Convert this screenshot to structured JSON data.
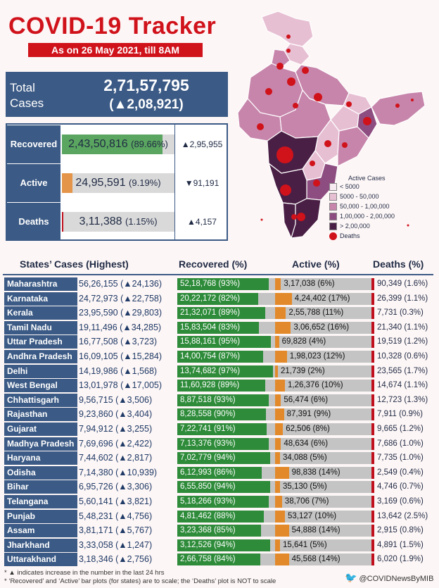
{
  "title": "COVID-19 Tracker",
  "subtitle": "As on 26 May 2021, till 8AM",
  "total": {
    "label": "Total Cases",
    "value": "2,71,57,795",
    "delta": "(▲2,08,921)"
  },
  "summary": [
    {
      "label": "Recovered",
      "value": "2,43,50,816",
      "pct_text": "(89.66%)",
      "pct": 89.66,
      "delta": "▲2,95,955",
      "color": "#5aa55f"
    },
    {
      "label": "Active",
      "value": "24,95,591",
      "pct_text": "(9.19%)",
      "pct": 9.19,
      "delta": "▼91,191",
      "color": "#e4954a"
    },
    {
      "label": "Deaths",
      "value": "3,11,388",
      "pct_text": "(1.15%)",
      "pct": 1.15,
      "delta": "▲4,157",
      "color": "#c0101e"
    }
  ],
  "map_legend": {
    "title": "Active Cases",
    "items": [
      {
        "label": "< 5000",
        "color": "#f7eaf1"
      },
      {
        "label": "5000 - 50,000",
        "color": "#e7bfd3"
      },
      {
        "label": "50,000 - 1,00,000",
        "color": "#c785ab"
      },
      {
        "label": "1,00,000 - 2,00,000",
        "color": "#8e4d80"
      },
      {
        "label": "> 2,00,000",
        "color": "#4a1f45"
      }
    ],
    "deaths_label": "Deaths"
  },
  "table_headers": {
    "states": "States’ Cases (Highest)",
    "recovered": "Recovered (%)",
    "active": "Active (%)",
    "deaths": "Deaths (%)"
  },
  "chart_data": {
    "type": "table",
    "columns": [
      "State",
      "Cases",
      "Recovered",
      "Active",
      "Deaths"
    ],
    "rows": [
      {
        "state": "Maharashtra",
        "cases": "56,26,155 (▲24,136)",
        "recovered": "52,18,768 (93%)",
        "rec_pct": 93,
        "active": "3,17,038 (6%)",
        "act_pct": 6,
        "deaths": "90,349 (1.6%)"
      },
      {
        "state": "Karnataka",
        "cases": "24,72,973 (▲22,758)",
        "recovered": "20,22,172 (82%)",
        "rec_pct": 82,
        "active": "4,24,402 (17%)",
        "act_pct": 17,
        "deaths": "26,399 (1.1%)"
      },
      {
        "state": "Kerala",
        "cases": "23,95,590 (▲29,803)",
        "recovered": "21,32,071 (89%)",
        "rec_pct": 89,
        "active": "2,55,788 (11%)",
        "act_pct": 11,
        "deaths": "7,731 (0.3%)"
      },
      {
        "state": "Tamil Nadu",
        "cases": "19,11,496 (▲34,285)",
        "recovered": "15,83,504 (83%)",
        "rec_pct": 83,
        "active": "3,06,652 (16%)",
        "act_pct": 16,
        "deaths": "21,340 (1.1%)"
      },
      {
        "state": "Uttar Pradesh",
        "cases": "16,77,508 (▲3,723)",
        "recovered": "15,88,161 (95%)",
        "rec_pct": 95,
        "active": "69,828 (4%)",
        "act_pct": 4,
        "deaths": "19,519 (1.2%)"
      },
      {
        "state": "Andhra Pradesh",
        "cases": "16,09,105 (▲15,284)",
        "recovered": "14,00,754 (87%)",
        "rec_pct": 87,
        "active": "1,98,023 (12%)",
        "act_pct": 12,
        "deaths": "10,328 (0.6%)"
      },
      {
        "state": "Delhi",
        "cases": "14,19,986 (▲1,568)",
        "recovered": "13,74,682 (97%)",
        "rec_pct": 97,
        "active": "21,739 (2%)",
        "act_pct": 2,
        "deaths": "23,565 (1.7%)"
      },
      {
        "state": "West Bengal",
        "cases": "13,01,978 (▲17,005)",
        "recovered": "11,60,928 (89%)",
        "rec_pct": 89,
        "active": "1,26,376 (10%)",
        "act_pct": 10,
        "deaths": "14,674 (1.1%)"
      },
      {
        "state": "Chhattisgarh",
        "cases": "9,56,715 (▲3,506)",
        "recovered": "8,87,518 (93%)",
        "rec_pct": 93,
        "active": "56,474 (6%)",
        "act_pct": 6,
        "deaths": "12,723 (1.3%)"
      },
      {
        "state": "Rajasthan",
        "cases": "9,23,860 (▲3,404)",
        "recovered": "8,28,558 (90%)",
        "rec_pct": 90,
        "active": "87,391 (9%)",
        "act_pct": 9,
        "deaths": "7,911 (0.9%)"
      },
      {
        "state": "Gujarat",
        "cases": "7,94,912 (▲3,255)",
        "recovered": "7,22,741 (91%)",
        "rec_pct": 91,
        "active": "62,506 (8%)",
        "act_pct": 8,
        "deaths": "9,665 (1.2%)"
      },
      {
        "state": "Madhya Pradesh",
        "cases": "7,69,696 (▲2,422)",
        "recovered": "7,13,376 (93%)",
        "rec_pct": 93,
        "active": "48,634 (6%)",
        "act_pct": 6,
        "deaths": "7,686 (1.0%)"
      },
      {
        "state": "Haryana",
        "cases": "7,44,602 (▲2,817)",
        "recovered": "7,02,779 (94%)",
        "rec_pct": 94,
        "active": "34,088 (5%)",
        "act_pct": 5,
        "deaths": "7,735 (1.0%)"
      },
      {
        "state": "Odisha",
        "cases": "7,14,380 (▲10,939)",
        "recovered": "6,12,993 (86%)",
        "rec_pct": 86,
        "active": "98,838 (14%)",
        "act_pct": 14,
        "deaths": "2,549 (0.4%)"
      },
      {
        "state": "Bihar",
        "cases": "6,95,726 (▲3,306)",
        "recovered": "6,55,850 (94%)",
        "rec_pct": 94,
        "active": "35,130 (5%)",
        "act_pct": 5,
        "deaths": "4,746 (0.7%)"
      },
      {
        "state": "Telangana",
        "cases": "5,60,141 (▲3,821)",
        "recovered": "5,18,266 (93%)",
        "rec_pct": 93,
        "active": "38,706 (7%)",
        "act_pct": 7,
        "deaths": "3,169 (0.6%)"
      },
      {
        "state": "Punjab",
        "cases": "5,48,231 (▲4,756)",
        "recovered": "4,81,462 (88%)",
        "rec_pct": 88,
        "active": "53,127 (10%)",
        "act_pct": 10,
        "deaths": "13,642 (2.5%)"
      },
      {
        "state": "Assam",
        "cases": "3,81,171 (▲5,767)",
        "recovered": "3,23,368 (85%)",
        "rec_pct": 85,
        "active": "54,888 (14%)",
        "act_pct": 14,
        "deaths": "2,915 (0.8%)"
      },
      {
        "state": "Jharkhand",
        "cases": "3,33,058 (▲1,247)",
        "recovered": "3,12,526 (94%)",
        "rec_pct": 94,
        "active": "15,641 (5%)",
        "act_pct": 5,
        "deaths": "4,891 (1.5%)"
      },
      {
        "state": "Uttarakhand",
        "cases": "3,18,346 (▲2,756)",
        "recovered": "2,66,758 (84%)",
        "rec_pct": 84,
        "active": "45,568 (14%)",
        "act_pct": 14,
        "deaths": "6,020 (1.9%)"
      }
    ]
  },
  "footnotes": [
    "* ▲ indicates increase in the number in the last 24 hrs",
    "* ‘Recovered’ and ‘Active’ bar plots (for states) are to scale; the ‘Deaths’ plot is NOT to scale"
  ],
  "handle": "@COVIDNewsByMIB",
  "colors": {
    "accent": "#d0121b",
    "navy": "#3b5a85",
    "recovered": "#2e8b3a",
    "active": "#e28a2b",
    "deaths": "#c0101e"
  }
}
